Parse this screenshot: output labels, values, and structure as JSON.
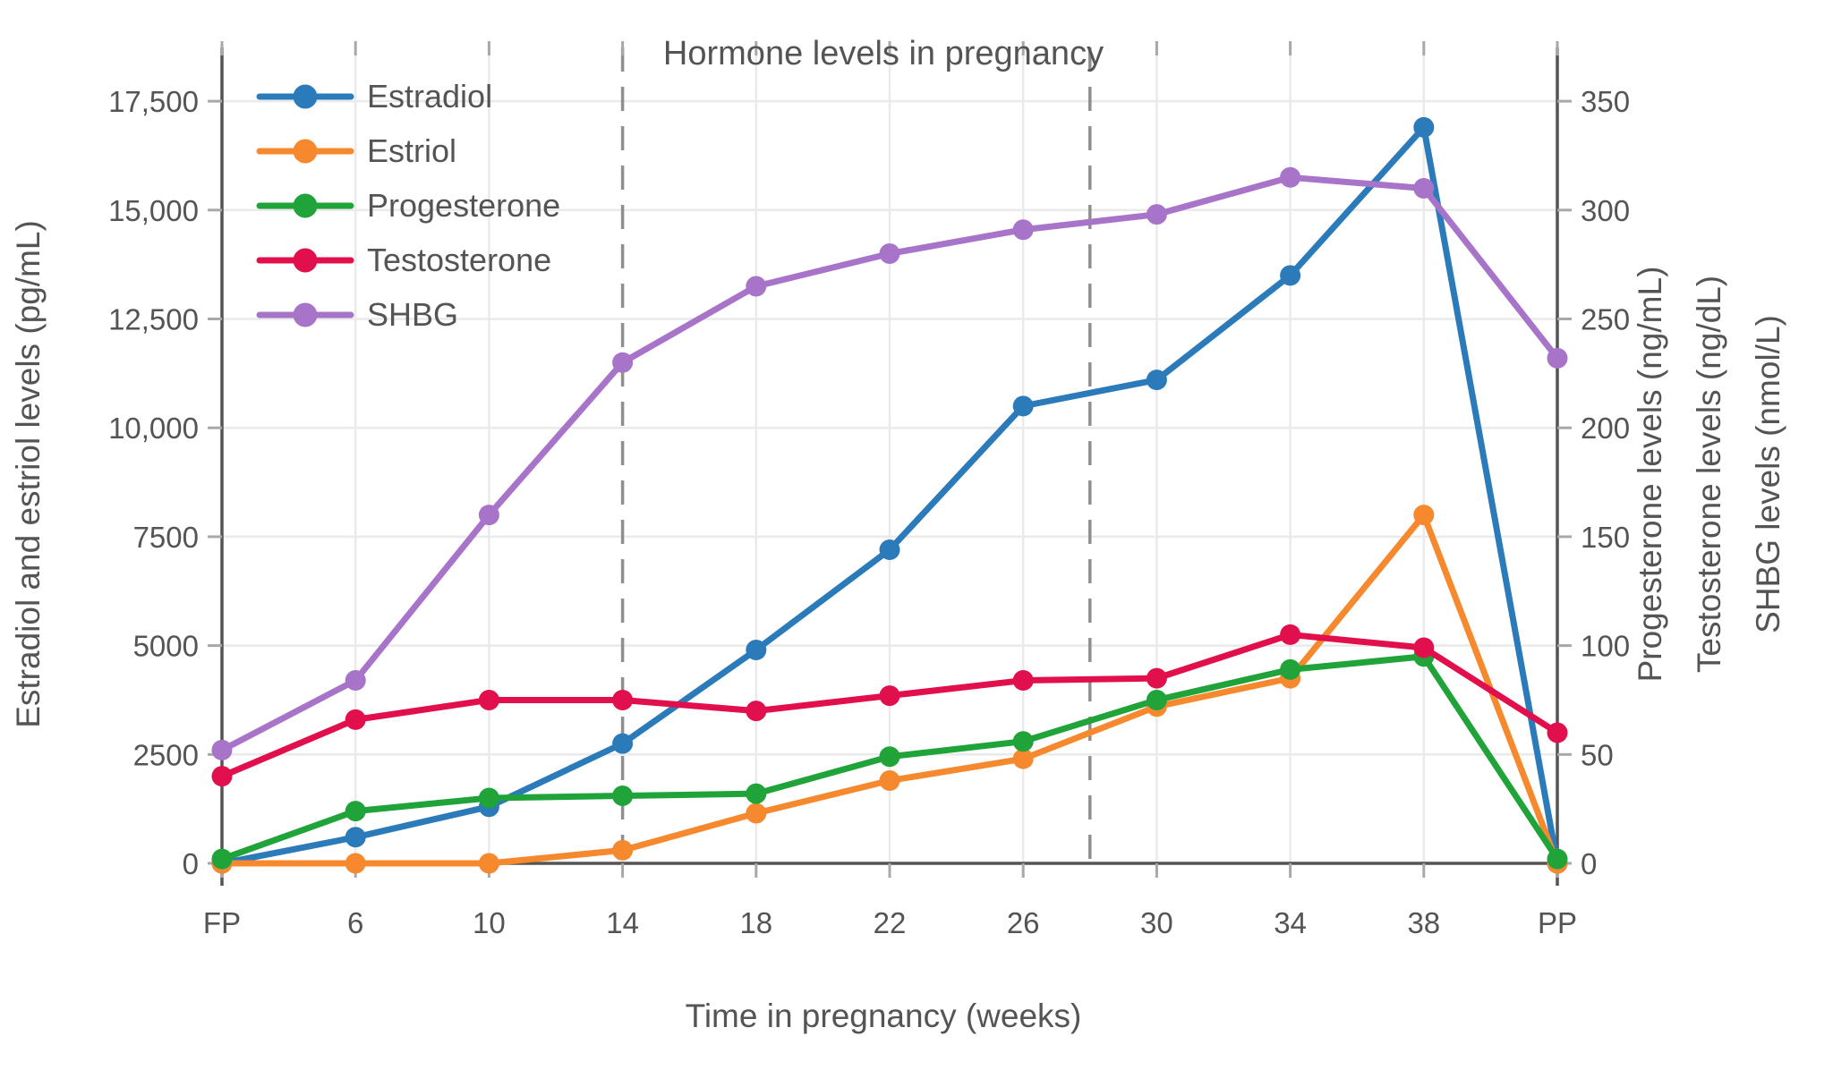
{
  "chart_data": {
    "type": "line",
    "title": "Hormone levels in pregnancy",
    "xlabel": "Time in pregnancy (weeks)",
    "ylabel_left": "Estradiol and estriol levels (pg/mL)",
    "ylabels_right": [
      "Progesterone levels (ng/mL)",
      "Testosterone levels (ng/dL)",
      "SHBG levels (nmol/L)"
    ],
    "categories": [
      "FP",
      "6",
      "10",
      "14",
      "18",
      "22",
      "26",
      "30",
      "34",
      "38",
      "PP"
    ],
    "left_axis": {
      "unit": "pg/mL",
      "ticks": [
        0,
        2500,
        5000,
        7500,
        10000,
        12500,
        15000,
        17500
      ],
      "tick_labels": [
        "0",
        "2500",
        "5000",
        "7500",
        "10,000",
        "12,500",
        "15,000",
        "17,500"
      ],
      "range": [
        0,
        18550
      ]
    },
    "right_axis": {
      "units": [
        "ng/mL",
        "ng/dL",
        "nmol/L"
      ],
      "ticks": [
        0,
        50,
        100,
        150,
        200,
        250,
        300,
        350
      ],
      "tick_labels": [
        "0",
        "50",
        "100",
        "150",
        "200",
        "250",
        "300",
        "350"
      ],
      "range": [
        0,
        371
      ]
    },
    "right_to_left_scale": 50,
    "dashed_vlines_weeks": [
      14,
      28
    ],
    "grid": true,
    "legend_position": "top-left-inside",
    "series": [
      {
        "name": "Estradiol",
        "axis": "left",
        "color": "#2b7bba",
        "values": [
          0,
          600,
          1300,
          2750,
          4900,
          7200,
          10500,
          11100,
          13500,
          16900,
          0
        ]
      },
      {
        "name": "Estriol",
        "axis": "left",
        "color": "#f6892e",
        "values": [
          0,
          0,
          0,
          300,
          1150,
          1900,
          2400,
          3600,
          4250,
          8000,
          0
        ]
      },
      {
        "name": "Progesterone",
        "axis": "right",
        "color": "#20a339",
        "values": [
          2,
          24,
          30,
          31,
          32,
          49,
          56,
          75,
          89,
          95,
          2
        ]
      },
      {
        "name": "Testosterone",
        "axis": "right",
        "color": "#e1104c",
        "values": [
          40,
          66,
          75,
          75,
          70,
          77,
          84,
          85,
          105,
          99,
          60
        ]
      },
      {
        "name": "SHBG",
        "axis": "right",
        "color": "#a874ca",
        "values": [
          52,
          84,
          160,
          230,
          265,
          280,
          291,
          298,
          315,
          310,
          232
        ]
      }
    ],
    "style_colors": {
      "grid": "#eaeaea",
      "axis_line": "#545454",
      "dashed_line": "#8f8f8f",
      "tick_mark": "#a8a8a8",
      "text": "#545454",
      "background": "#ffffff"
    }
  }
}
